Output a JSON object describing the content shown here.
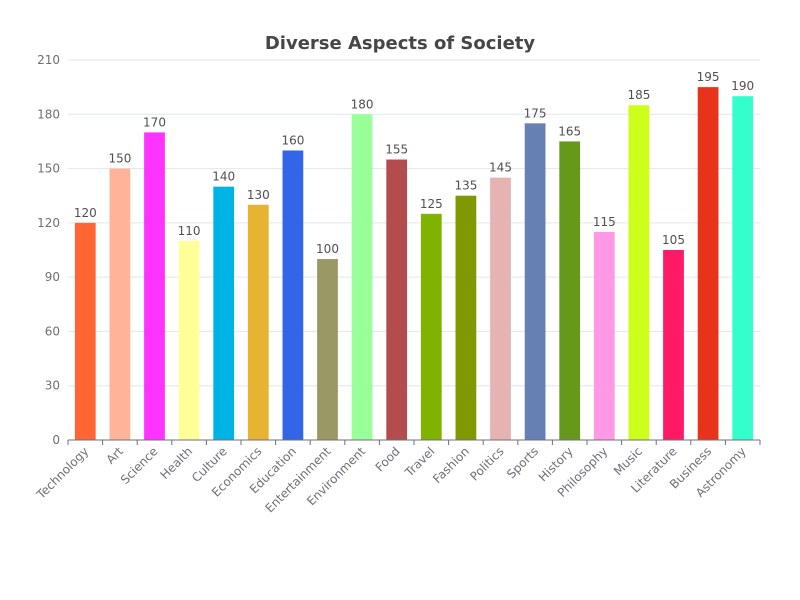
{
  "chart_data": {
    "type": "bar",
    "title": "Diverse Aspects of Society",
    "xlabel": "",
    "ylabel": "",
    "ylim": [
      0,
      210
    ],
    "yticks": [
      0,
      30,
      60,
      90,
      120,
      150,
      180,
      210
    ],
    "grid": true,
    "categories": [
      "Technology",
      "Art",
      "Science",
      "Health",
      "Culture",
      "Economics",
      "Education",
      "Entertainment",
      "Environment",
      "Food",
      "Travel",
      "Fashion",
      "Politics",
      "Sports",
      "History",
      "Philosophy",
      "Music",
      "Literature",
      "Business",
      "Astronomy"
    ],
    "values": [
      120,
      150,
      170,
      110,
      140,
      130,
      160,
      100,
      180,
      155,
      125,
      135,
      145,
      175,
      165,
      115,
      185,
      105,
      195,
      190
    ],
    "colors": [
      "#ff6633",
      "#ffb399",
      "#ff33ff",
      "#ffff99",
      "#00b3e6",
      "#e6b333",
      "#3366e6",
      "#999966",
      "#99ff99",
      "#b34d4d",
      "#80b300",
      "#809900",
      "#e6b3b3",
      "#6680b3",
      "#66991a",
      "#ff99e6",
      "#ccff1a",
      "#ff1a66",
      "#e6331a",
      "#33ffcc"
    ]
  }
}
